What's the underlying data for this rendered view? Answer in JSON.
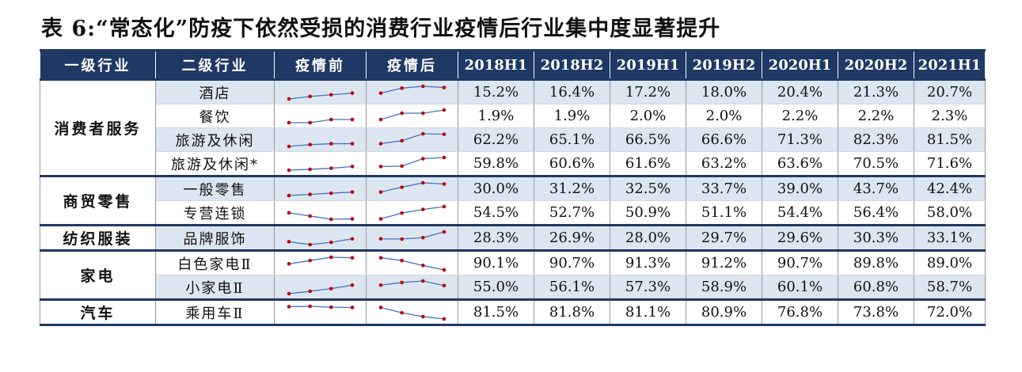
{
  "title": "表 6:“常态化”防疫下依然受损的消费行业疫情后行业集中度显著提升",
  "headers": [
    "一级行业",
    "二级行业",
    "疫情前",
    "疫情后",
    "2018H1",
    "2018H2",
    "2019H1",
    "2019H2",
    "2020H1",
    "2020H2",
    "2021H1"
  ],
  "groups": [
    {
      "name": "消费者服务",
      "rows": [
        {
          "name": "酒店",
          "values": [
            "15.2%",
            "16.4%",
            "17.2%",
            "18.0%",
            "20.4%",
            "21.3%",
            "20.7%"
          ],
          "series": [
            15.2,
            16.4,
            17.2,
            18.0,
            20.4,
            21.3,
            20.7
          ]
        },
        {
          "name": "餐饮",
          "values": [
            "1.9%",
            "1.9%",
            "2.0%",
            "2.0%",
            "2.2%",
            "2.2%",
            "2.3%"
          ],
          "series": [
            1.9,
            1.9,
            2.0,
            2.0,
            2.2,
            2.2,
            2.3
          ]
        },
        {
          "name": "旅游及休闲",
          "values": [
            "62.2%",
            "65.1%",
            "66.5%",
            "66.6%",
            "71.3%",
            "82.3%",
            "81.5%"
          ],
          "series": [
            62.2,
            65.1,
            66.5,
            66.6,
            71.3,
            82.3,
            81.5
          ]
        },
        {
          "name": "旅游及休闲*",
          "values": [
            "59.8%",
            "60.6%",
            "61.6%",
            "63.2%",
            "63.6%",
            "70.5%",
            "71.6%"
          ],
          "series": [
            59.8,
            60.6,
            61.6,
            63.2,
            63.6,
            70.5,
            71.6
          ]
        }
      ]
    },
    {
      "name": "商贸零售",
      "rows": [
        {
          "name": "一般零售",
          "values": [
            "30.0%",
            "31.2%",
            "32.5%",
            "33.7%",
            "39.0%",
            "43.7%",
            "42.4%"
          ],
          "series": [
            30.0,
            31.2,
            32.5,
            33.7,
            39.0,
            43.7,
            42.4
          ]
        },
        {
          "name": "专营连锁",
          "values": [
            "54.5%",
            "52.7%",
            "50.9%",
            "51.1%",
            "54.4%",
            "56.4%",
            "58.0%"
          ],
          "series": [
            54.5,
            52.7,
            50.9,
            51.1,
            54.4,
            56.4,
            58.0
          ]
        }
      ]
    },
    {
      "name": "纺织服装",
      "rows": [
        {
          "name": "品牌服饰",
          "values": [
            "28.3%",
            "26.9%",
            "28.0%",
            "29.7%",
            "29.6%",
            "30.3%",
            "33.1%"
          ],
          "series": [
            28.3,
            26.9,
            28.0,
            29.7,
            29.6,
            30.3,
            33.1
          ]
        }
      ]
    },
    {
      "name": "家电",
      "rows": [
        {
          "name": "白色家电Ⅱ",
          "values": [
            "90.1%",
            "90.7%",
            "91.3%",
            "91.2%",
            "90.7%",
            "89.8%",
            "89.0%"
          ],
          "series": [
            90.1,
            90.7,
            91.3,
            91.2,
            90.7,
            89.8,
            89.0
          ]
        },
        {
          "name": "小家电Ⅱ",
          "values": [
            "55.0%",
            "56.1%",
            "57.3%",
            "58.9%",
            "60.1%",
            "60.8%",
            "58.7%"
          ],
          "series": [
            55.0,
            56.1,
            57.3,
            58.9,
            60.1,
            60.8,
            58.7
          ]
        }
      ]
    },
    {
      "name": "汽车",
      "rows": [
        {
          "name": "乘用车Ⅱ",
          "values": [
            "81.5%",
            "81.8%",
            "81.1%",
            "80.9%",
            "76.8%",
            "73.8%",
            "72.0%"
          ],
          "series": [
            81.5,
            81.8,
            81.1,
            80.9,
            76.8,
            73.8,
            72.0
          ]
        }
      ]
    }
  ],
  "colors": {
    "header_bg": "#1f3864",
    "shade": "#dce6f1",
    "spark_line": "#4472c4",
    "spark_point": "#c00000"
  }
}
